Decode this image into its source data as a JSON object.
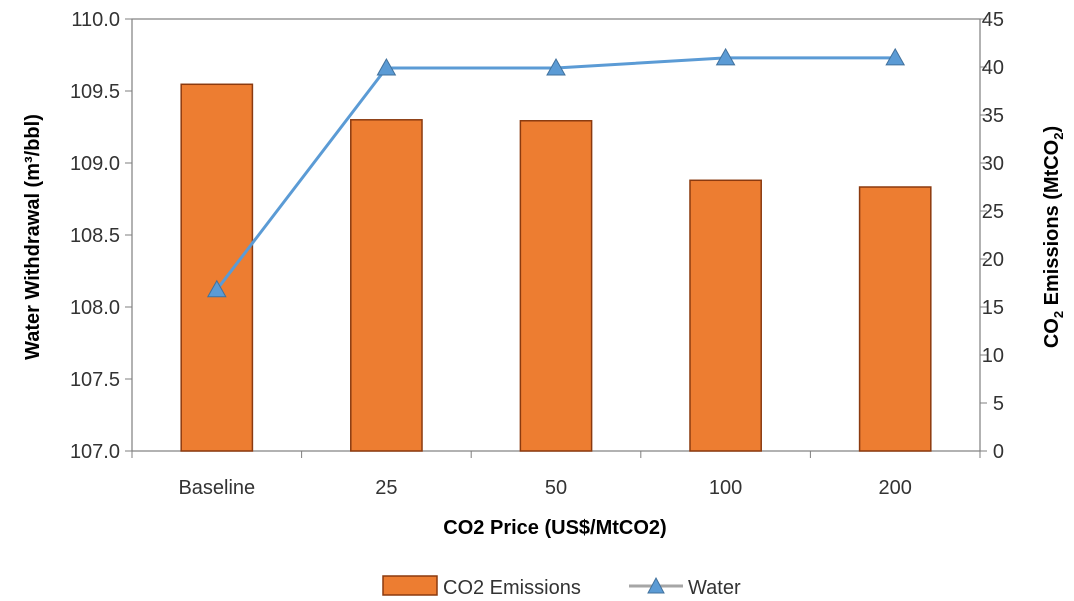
{
  "chart_data": {
    "type": "bar+line",
    "categories": [
      "Baseline",
      "25",
      "50",
      "100",
      "200"
    ],
    "series": [
      {
        "name": "CO2 Emissions",
        "kind": "bar",
        "axis": "right",
        "color": "#ED7D31",
        "edge_color": "#8B3A0F",
        "values": [
          38.2,
          34.5,
          34.4,
          28.2,
          27.5
        ]
      },
      {
        "name": "Water",
        "kind": "line",
        "axis": "left",
        "color": "#5B9BD5",
        "marker": "triangle",
        "values": [
          108.12,
          109.66,
          109.66,
          109.73,
          109.73
        ]
      }
    ],
    "xlabel": "CO2 Price (US$/MtCO2)",
    "ylabel": "Water Withdrawal (m³/bbl)",
    "y2label_main": "CO",
    "y2label_sub": "2",
    "y2label_rest": " Emissions (MtCO",
    "y2label_sub2": "2",
    "y2label_end": ")",
    "ylim": [
      107.0,
      110.0
    ],
    "yticks": [
      "107.0",
      "107.5",
      "108.0",
      "108.5",
      "109.0",
      "109.5",
      "110.0"
    ],
    "y2lim": [
      0,
      45
    ],
    "y2ticks": [
      "0",
      "5",
      "10",
      "15",
      "20",
      "25",
      "30",
      "35",
      "40",
      "45"
    ],
    "grid": false,
    "legend_position": "bottom"
  }
}
